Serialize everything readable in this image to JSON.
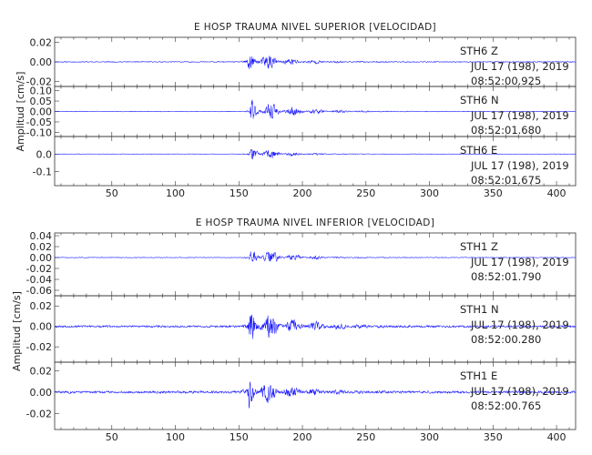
{
  "chart_data": [
    {
      "type": "line",
      "title": "E HOSP TRAUMA NIVEL SUPERIOR [VELOCIDAD]",
      "ylabel": "Amplitud [cm/s]",
      "xlim": [
        5,
        415
      ],
      "x_ticks": [
        "50",
        "100",
        "150",
        "200",
        "250",
        "300",
        "350",
        "400"
      ],
      "trace_color": "#1a1aff",
      "traces": [
        {
          "name": "STH6 Z",
          "station": "STH6",
          "component": "Z",
          "date": "JUL 17 (198), 2019",
          "time": "08:52:00.925",
          "ylim": [
            -0.025,
            0.025
          ],
          "y_ticks": [
            "0.02",
            "0.00",
            "-0.02"
          ],
          "onset": 156,
          "peak_amplitude": 0.022,
          "noise_amplitude": 0.0006,
          "decay_seconds": 22,
          "seed": 11
        },
        {
          "name": "STH6 N",
          "station": "STH6",
          "component": "N",
          "date": "JUL 17 (198), 2019",
          "time": "08:52:01.680",
          "ylim": [
            -0.12,
            0.12
          ],
          "y_ticks": [
            "0.10",
            "0.05",
            "0.00",
            "-0.05",
            "-0.10"
          ],
          "onset": 158,
          "peak_amplitude": 0.09,
          "noise_amplitude": 0.002,
          "decay_seconds": 28,
          "seed": 23
        },
        {
          "name": "STH6 E",
          "station": "STH6",
          "component": "E",
          "date": "JUL 17 (198), 2019",
          "time": "08:52:01.675",
          "ylim": [
            -0.18,
            0.1
          ],
          "y_ticks": [
            "0.0",
            "-0.1"
          ],
          "onset": 158,
          "peak_amplitude": 0.08,
          "noise_amplitude": 0.002,
          "decay_seconds": 20,
          "seed": 37
        }
      ]
    },
    {
      "type": "line",
      "title": "E HOSP TRAUMA NIVEL INFERIOR [VELOCIDAD]",
      "ylabel": "Amplitud [cm/s]",
      "xlim": [
        5,
        415
      ],
      "x_ticks": [
        "50",
        "100",
        "150",
        "200",
        "250",
        "300",
        "350",
        "400"
      ],
      "trace_color": "#1a1aff",
      "traces": [
        {
          "name": "STH1 Z",
          "station": "STH1",
          "component": "Z",
          "date": "JUL 17 (198), 2019",
          "time": "08:52:01.790",
          "ylim": [
            -0.07,
            0.045
          ],
          "y_ticks": [
            "0.04",
            "0.02",
            "0.00",
            "-0.02",
            "-0.04",
            "-0.06"
          ],
          "onset": 158,
          "peak_amplitude": 0.035,
          "noise_amplitude": 0.0008,
          "decay_seconds": 22,
          "seed": 51
        },
        {
          "name": "STH1 N",
          "station": "STH1",
          "component": "N",
          "date": "JUL 17 (198), 2019",
          "time": "08:52:00.280",
          "ylim": [
            -0.035,
            0.03
          ],
          "y_ticks": [
            "0.02",
            "0.00",
            "-0.02"
          ],
          "onset": 157,
          "peak_amplitude": 0.026,
          "noise_amplitude": 0.0012,
          "decay_seconds": 30,
          "seed": 67
        },
        {
          "name": "STH1 E",
          "station": "STH1",
          "component": "E",
          "date": "JUL 17 (198), 2019",
          "time": "08:52:00.765",
          "ylim": [
            -0.035,
            0.028
          ],
          "y_ticks": [
            "0.02",
            "0.00",
            "-0.02"
          ],
          "onset": 156,
          "peak_amplitude": 0.022,
          "noise_amplitude": 0.0014,
          "decay_seconds": 26,
          "seed": 83
        }
      ]
    }
  ]
}
